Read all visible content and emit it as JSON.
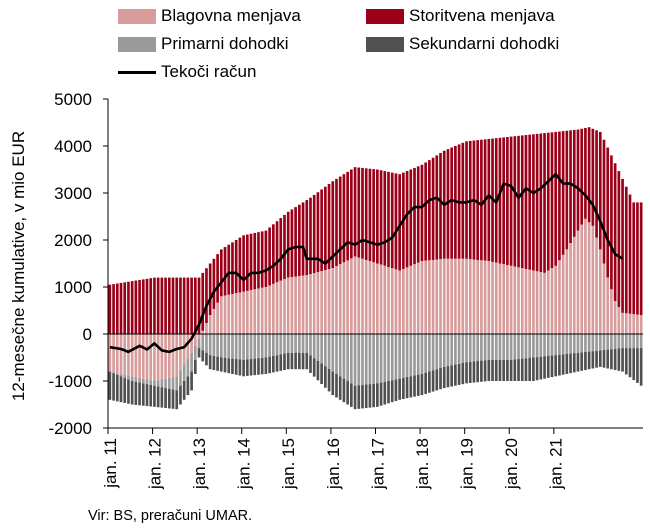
{
  "legend": {
    "goods": "Blagovna menjava",
    "services": "Storitvena menjava",
    "primary": "Primarni dohodki",
    "secondary": "Sekundarni dohodki",
    "current": "Tekoči račun"
  },
  "source": "Vir: BS, preračuni UMAR.",
  "colors": {
    "goods": "#d99c9c",
    "services": "#9c0018",
    "primary": "#9a9a9a",
    "secondary": "#505050",
    "current": "#000000"
  },
  "chart_data": {
    "type": "bar",
    "stacked": true,
    "ylabel": "12-mesečne kumulative, v mio EUR",
    "ylim": [
      -2000,
      5000
    ],
    "yticks": [
      "5000",
      "4000",
      "3000",
      "2000",
      "1000",
      "0",
      "-1000",
      "-2000"
    ],
    "ytick_values": [
      5000,
      4000,
      3000,
      2000,
      1000,
      0,
      -1000,
      -2000
    ],
    "xtick_labels": [
      "jan. 11",
      "jan. 12",
      "jan. 13",
      "jan. 14",
      "jan. 15",
      "jan. 16",
      "jan. 17",
      "jan. 18",
      "jan. 19",
      "jan. 20",
      "jan. 21"
    ],
    "xtick_years": [
      2011,
      2012,
      2013,
      2014,
      2015,
      2016,
      2017,
      2018,
      2019,
      2020,
      2021
    ],
    "x_start": "2011-01",
    "x_end": "2021-12",
    "frequency": "monthly",
    "grid": false,
    "legend_position": "top",
    "series": [
      {
        "name": "Blagovna menjava",
        "key": "goods",
        "anchors": [
          [
            0,
            -800
          ],
          [
            6,
            -900
          ],
          [
            12,
            -1000
          ],
          [
            18,
            -900
          ],
          [
            22,
            -400
          ],
          [
            24,
            -100
          ],
          [
            27,
            400
          ],
          [
            30,
            800
          ],
          [
            36,
            900
          ],
          [
            42,
            1000
          ],
          [
            48,
            1200
          ],
          [
            53,
            1250
          ],
          [
            60,
            1400
          ],
          [
            66,
            1650
          ],
          [
            72,
            1500
          ],
          [
            78,
            1350
          ],
          [
            84,
            1550
          ],
          [
            90,
            1600
          ],
          [
            96,
            1600
          ],
          [
            102,
            1550
          ],
          [
            108,
            1450
          ],
          [
            114,
            1350
          ],
          [
            117,
            1300
          ],
          [
            120,
            1450
          ],
          [
            123,
            1800
          ],
          [
            126,
            2200
          ],
          [
            128,
            2450
          ],
          [
            130,
            2300
          ],
          [
            132,
            1800
          ],
          [
            134,
            1200
          ],
          [
            136,
            700
          ],
          [
            138,
            450
          ],
          [
            143,
            400
          ]
        ]
      },
      {
        "name": "Storitvena menjava",
        "key": "services",
        "anchors": [
          [
            0,
            1050
          ],
          [
            12,
            1200
          ],
          [
            24,
            1200
          ],
          [
            30,
            1800
          ],
          [
            36,
            2100
          ],
          [
            42,
            2200
          ],
          [
            48,
            2600
          ],
          [
            54,
            2900
          ],
          [
            60,
            3250
          ],
          [
            66,
            3550
          ],
          [
            72,
            3500
          ],
          [
            78,
            3400
          ],
          [
            84,
            3600
          ],
          [
            90,
            3900
          ],
          [
            96,
            4100
          ],
          [
            102,
            4150
          ],
          [
            108,
            4200
          ],
          [
            114,
            4250
          ],
          [
            120,
            4300
          ],
          [
            126,
            4350
          ],
          [
            129,
            4400
          ],
          [
            132,
            4300
          ],
          [
            135,
            3800
          ],
          [
            138,
            3300
          ],
          [
            141,
            2800
          ],
          [
            143,
            2800
          ]
        ]
      },
      {
        "name": "Primarni dohodki",
        "key": "primary",
        "anchors": [
          [
            0,
            -800
          ],
          [
            6,
            -1000
          ],
          [
            12,
            -1100
          ],
          [
            18,
            -1200
          ],
          [
            22,
            -800
          ],
          [
            24,
            -300
          ],
          [
            27,
            -450
          ],
          [
            30,
            -500
          ],
          [
            36,
            -550
          ],
          [
            42,
            -500
          ],
          [
            48,
            -400
          ],
          [
            53,
            -400
          ],
          [
            60,
            -800
          ],
          [
            66,
            -1100
          ],
          [
            72,
            -1050
          ],
          [
            78,
            -950
          ],
          [
            84,
            -850
          ],
          [
            90,
            -700
          ],
          [
            96,
            -600
          ],
          [
            102,
            -550
          ],
          [
            108,
            -550
          ],
          [
            114,
            -500
          ],
          [
            120,
            -450
          ],
          [
            126,
            -400
          ],
          [
            132,
            -350
          ],
          [
            138,
            -300
          ],
          [
            143,
            -300
          ]
        ]
      },
      {
        "name": "Sekundarni dohodki",
        "key": "secondary",
        "anchors": [
          [
            0,
            -1400
          ],
          [
            6,
            -1500
          ],
          [
            12,
            -1550
          ],
          [
            18,
            -1600
          ],
          [
            22,
            -1200
          ],
          [
            24,
            -500
          ],
          [
            27,
            -750
          ],
          [
            30,
            -800
          ],
          [
            36,
            -900
          ],
          [
            42,
            -850
          ],
          [
            48,
            -750
          ],
          [
            53,
            -750
          ],
          [
            60,
            -1300
          ],
          [
            66,
            -1600
          ],
          [
            72,
            -1550
          ],
          [
            78,
            -1400
          ],
          [
            84,
            -1300
          ],
          [
            90,
            -1150
          ],
          [
            96,
            -1050
          ],
          [
            102,
            -1000
          ],
          [
            108,
            -1000
          ],
          [
            114,
            -1000
          ],
          [
            120,
            -900
          ],
          [
            126,
            -800
          ],
          [
            132,
            -700
          ],
          [
            138,
            -800
          ],
          [
            143,
            -1100
          ]
        ]
      },
      {
        "name": "Tekoči račun",
        "key": "current",
        "type": "line",
        "anchors": [
          [
            0,
            -280
          ],
          [
            3,
            -320
          ],
          [
            5,
            -380
          ],
          [
            8,
            -250
          ],
          [
            10,
            -330
          ],
          [
            12,
            -200
          ],
          [
            14,
            -350
          ],
          [
            16,
            -380
          ],
          [
            18,
            -320
          ],
          [
            20,
            -280
          ],
          [
            22,
            -100
          ],
          [
            24,
            200
          ],
          [
            26,
            600
          ],
          [
            28,
            900
          ],
          [
            30,
            1100
          ],
          [
            32,
            1300
          ],
          [
            34,
            1300
          ],
          [
            36,
            1150
          ],
          [
            38,
            1300
          ],
          [
            40,
            1300
          ],
          [
            42,
            1350
          ],
          [
            44,
            1450
          ],
          [
            46,
            1600
          ],
          [
            48,
            1800
          ],
          [
            50,
            1850
          ],
          [
            52,
            1850
          ],
          [
            53,
            1600
          ],
          [
            56,
            1600
          ],
          [
            58,
            1500
          ],
          [
            60,
            1650
          ],
          [
            62,
            1800
          ],
          [
            64,
            1950
          ],
          [
            66,
            1900
          ],
          [
            68,
            2000
          ],
          [
            70,
            1950
          ],
          [
            72,
            1900
          ],
          [
            74,
            1950
          ],
          [
            76,
            2050
          ],
          [
            78,
            2300
          ],
          [
            80,
            2550
          ],
          [
            82,
            2700
          ],
          [
            84,
            2700
          ],
          [
            86,
            2850
          ],
          [
            88,
            2900
          ],
          [
            90,
            2750
          ],
          [
            92,
            2850
          ],
          [
            94,
            2800
          ],
          [
            96,
            2800
          ],
          [
            98,
            2850
          ],
          [
            100,
            2750
          ],
          [
            102,
            2950
          ],
          [
            104,
            2800
          ],
          [
            106,
            3200
          ],
          [
            108,
            3150
          ],
          [
            110,
            2900
          ],
          [
            112,
            3100
          ],
          [
            114,
            3000
          ],
          [
            116,
            3100
          ],
          [
            118,
            3250
          ],
          [
            120,
            3400
          ],
          [
            122,
            3200
          ],
          [
            124,
            3200
          ],
          [
            126,
            3100
          ],
          [
            128,
            2950
          ],
          [
            130,
            2750
          ],
          [
            132,
            2400
          ],
          [
            134,
            2000
          ],
          [
            136,
            1700
          ],
          [
            138,
            1600
          ]
        ]
      }
    ]
  }
}
